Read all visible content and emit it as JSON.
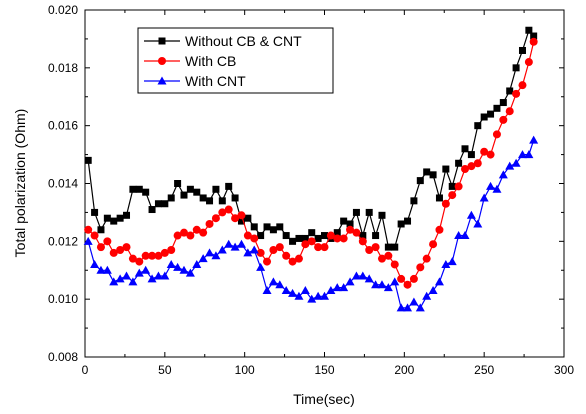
{
  "chart_data": {
    "type": "line",
    "xlabel": "Time(sec)",
    "ylabel": "Total polarization (Ohm)",
    "xlim": [
      0,
      300
    ],
    "ylim": [
      0.008,
      0.02
    ],
    "x_ticks": [
      0,
      50,
      100,
      150,
      200,
      250,
      300
    ],
    "y_ticks": [
      0.008,
      0.01,
      0.012,
      0.014,
      0.016,
      0.018,
      0.02
    ],
    "x_tick_labels": [
      "0",
      "50",
      "100",
      "150",
      "200",
      "250",
      "300"
    ],
    "y_tick_labels": [
      "0.008",
      "0.010",
      "0.012",
      "0.014",
      "0.016",
      "0.018",
      "0.020"
    ],
    "grid": false,
    "legend_position": "top-left",
    "series": [
      {
        "name": "Without CB & CNT",
        "color": "#000000",
        "marker": "square",
        "x": [
          2,
          6,
          10,
          14,
          18,
          22,
          26,
          30,
          34,
          38,
          42,
          46,
          50,
          54,
          58,
          62,
          66,
          70,
          74,
          78,
          82,
          86,
          90,
          94,
          98,
          102,
          106,
          110,
          114,
          118,
          122,
          126,
          130,
          134,
          138,
          142,
          146,
          150,
          154,
          158,
          162,
          166,
          170,
          174,
          178,
          182,
          186,
          190,
          194,
          198,
          202,
          206,
          210,
          214,
          218,
          222,
          226,
          230,
          234,
          238,
          242,
          246,
          250,
          254,
          258,
          262,
          266,
          270,
          274,
          278,
          281
        ],
        "y": [
          0.0148,
          0.013,
          0.0124,
          0.0128,
          0.0127,
          0.0128,
          0.0129,
          0.0138,
          0.0138,
          0.0137,
          0.0131,
          0.0133,
          0.0133,
          0.0135,
          0.014,
          0.0136,
          0.0138,
          0.0137,
          0.0135,
          0.0134,
          0.0138,
          0.0134,
          0.0139,
          0.0135,
          0.0127,
          0.0128,
          0.0125,
          0.0122,
          0.0125,
          0.0124,
          0.0125,
          0.0122,
          0.012,
          0.0121,
          0.0121,
          0.0123,
          0.0121,
          0.0122,
          0.0121,
          0.0123,
          0.0127,
          0.0126,
          0.013,
          0.0122,
          0.013,
          0.0122,
          0.0129,
          0.0118,
          0.0118,
          0.0126,
          0.0127,
          0.0134,
          0.0141,
          0.0144,
          0.0143,
          0.0135,
          0.0145,
          0.0139,
          0.0147,
          0.0152,
          0.015,
          0.016,
          0.0163,
          0.0164,
          0.0166,
          0.0168,
          0.0172,
          0.018,
          0.0186,
          0.0193,
          0.0191
        ]
      },
      {
        "name": "With CB",
        "color": "#ff0000",
        "marker": "circle",
        "x": [
          2,
          6,
          10,
          14,
          18,
          22,
          26,
          30,
          34,
          38,
          42,
          46,
          50,
          54,
          58,
          62,
          66,
          70,
          74,
          78,
          82,
          86,
          90,
          94,
          98,
          102,
          106,
          110,
          114,
          118,
          122,
          126,
          130,
          134,
          138,
          142,
          146,
          150,
          154,
          158,
          162,
          166,
          170,
          174,
          178,
          182,
          186,
          190,
          194,
          198,
          202,
          206,
          210,
          214,
          218,
          222,
          226,
          230,
          234,
          238,
          242,
          246,
          250,
          254,
          258,
          262,
          266,
          270,
          274,
          278,
          281
        ],
        "y": [
          0.0124,
          0.0122,
          0.0118,
          0.012,
          0.0116,
          0.0117,
          0.0118,
          0.0114,
          0.0113,
          0.0115,
          0.0115,
          0.0115,
          0.0116,
          0.0117,
          0.0122,
          0.0123,
          0.0122,
          0.0124,
          0.0123,
          0.0126,
          0.0128,
          0.013,
          0.0131,
          0.0128,
          0.0129,
          0.0122,
          0.0121,
          0.0116,
          0.0113,
          0.0117,
          0.0118,
          0.0115,
          0.0113,
          0.0114,
          0.0119,
          0.012,
          0.0118,
          0.0118,
          0.0122,
          0.0121,
          0.0121,
          0.0124,
          0.0123,
          0.012,
          0.0117,
          0.0118,
          0.0114,
          0.0115,
          0.0112,
          0.0107,
          0.0105,
          0.0107,
          0.0111,
          0.0114,
          0.0119,
          0.0124,
          0.0133,
          0.0136,
          0.0139,
          0.0145,
          0.0146,
          0.0147,
          0.0151,
          0.015,
          0.0157,
          0.0162,
          0.0165,
          0.0171,
          0.0174,
          0.0182,
          0.0189
        ]
      },
      {
        "name": "With CNT",
        "color": "#0000ff",
        "marker": "triangle",
        "x": [
          2,
          6,
          10,
          14,
          18,
          22,
          26,
          30,
          34,
          38,
          42,
          46,
          50,
          54,
          58,
          62,
          66,
          70,
          74,
          78,
          82,
          86,
          90,
          94,
          98,
          102,
          106,
          110,
          114,
          118,
          122,
          126,
          130,
          134,
          138,
          142,
          146,
          150,
          154,
          158,
          162,
          166,
          170,
          174,
          178,
          182,
          186,
          190,
          194,
          198,
          202,
          206,
          210,
          214,
          218,
          222,
          226,
          230,
          234,
          238,
          242,
          246,
          250,
          254,
          258,
          262,
          266,
          270,
          274,
          278,
          281
        ],
        "y": [
          0.012,
          0.0112,
          0.011,
          0.011,
          0.0106,
          0.0107,
          0.0108,
          0.0106,
          0.0109,
          0.011,
          0.0107,
          0.0108,
          0.0108,
          0.0112,
          0.0111,
          0.011,
          0.0109,
          0.0112,
          0.0114,
          0.0116,
          0.0115,
          0.0117,
          0.0119,
          0.0118,
          0.0119,
          0.0116,
          0.0117,
          0.0111,
          0.0103,
          0.0106,
          0.0105,
          0.0103,
          0.0102,
          0.0101,
          0.0103,
          0.01,
          0.0101,
          0.0101,
          0.0103,
          0.0104,
          0.0104,
          0.0106,
          0.0108,
          0.0108,
          0.0107,
          0.0105,
          0.0105,
          0.0104,
          0.0106,
          0.0097,
          0.0097,
          0.0099,
          0.0097,
          0.0101,
          0.0103,
          0.0106,
          0.0112,
          0.0113,
          0.0122,
          0.0122,
          0.0129,
          0.0126,
          0.0135,
          0.0139,
          0.0138,
          0.0143,
          0.0146,
          0.0147,
          0.015,
          0.015,
          0.0155
        ]
      }
    ]
  }
}
